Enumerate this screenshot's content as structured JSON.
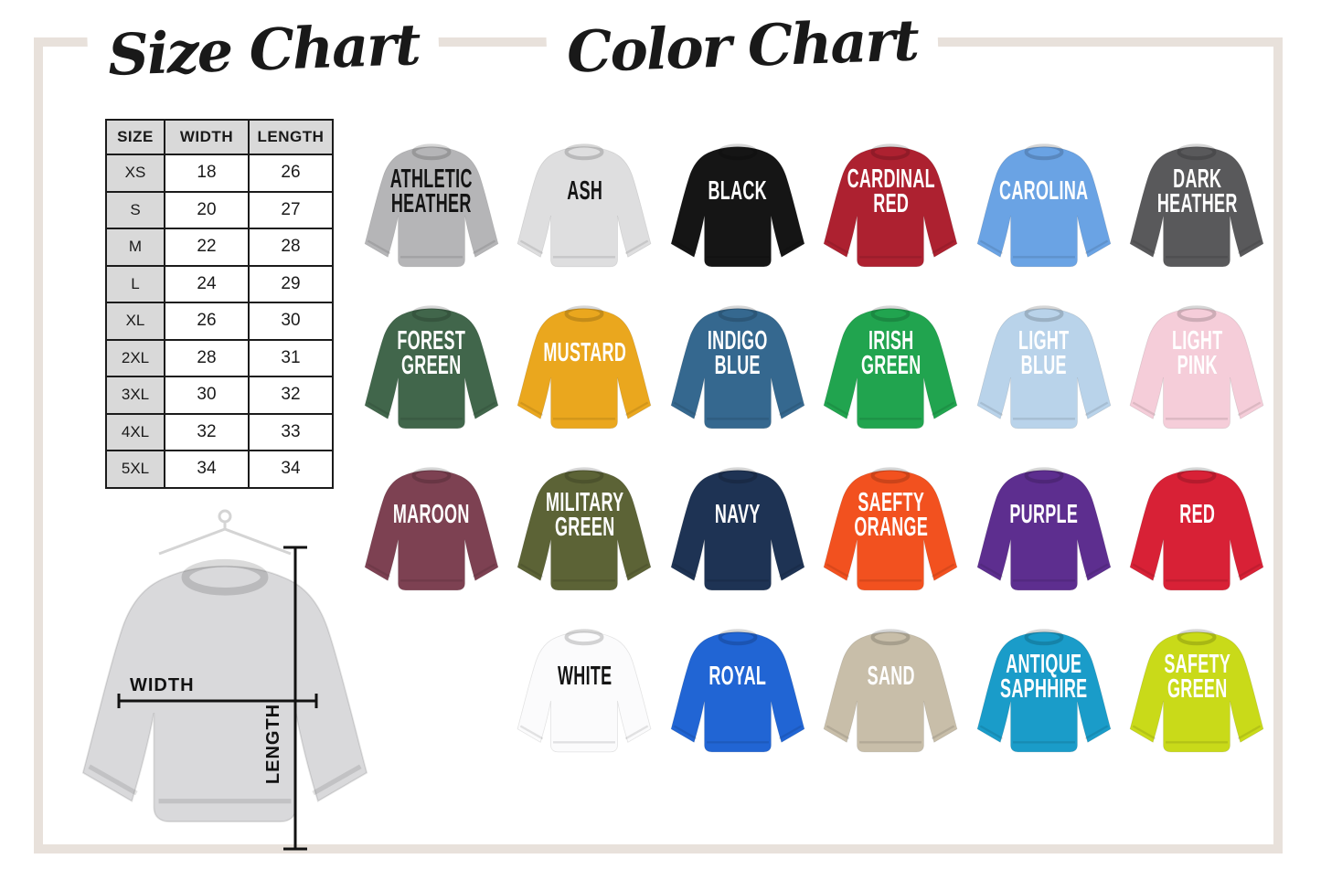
{
  "titles": {
    "size_chart": "Size Chart",
    "color_chart": "Color Chart"
  },
  "theme": {
    "frame_color": "#e8e1db",
    "table_header_bg": "#d9d9d9",
    "table_border": "#1b1b1b",
    "diagram_shirt_color": "#d9d9db",
    "measure_line_color": "#121212"
  },
  "size_table": {
    "headers": [
      "SIZE",
      "WIDTH",
      "LENGTH"
    ],
    "rows": [
      [
        "XS",
        "18",
        "26"
      ],
      [
        "S",
        "20",
        "27"
      ],
      [
        "M",
        "22",
        "28"
      ],
      [
        "L",
        "24",
        "29"
      ],
      [
        "XL",
        "26",
        "30"
      ],
      [
        "2XL",
        "28",
        "31"
      ],
      [
        "3XL",
        "30",
        "32"
      ],
      [
        "4XL",
        "32",
        "33"
      ],
      [
        "5XL",
        "34",
        "34"
      ]
    ]
  },
  "diagram": {
    "width_label": "WIDTH",
    "length_label": "LENGTH"
  },
  "color_chart": {
    "colors": [
      {
        "name": "ATHLETIC HEATHER",
        "hex": "#b5b5b7",
        "text": "#141414"
      },
      {
        "name": "ASH",
        "hex": "#dededf",
        "text": "#141414"
      },
      {
        "name": "BLACK",
        "hex": "#151515",
        "text": "#ffffff"
      },
      {
        "name": "CARDINAL RED",
        "hex": "#ad2130",
        "text": "#ffffff"
      },
      {
        "name": "CAROLINA",
        "hex": "#6aa3e4",
        "text": "#ffffff"
      },
      {
        "name": "DARK HEATHER",
        "hex": "#59595b",
        "text": "#ffffff"
      },
      {
        "name": "FOREST GREEN",
        "hex": "#41664b",
        "text": "#ffffff"
      },
      {
        "name": "MUSTARD",
        "hex": "#eaa71e",
        "text": "#ffffff"
      },
      {
        "name": "INDIGO BLUE",
        "hex": "#35688f",
        "text": "#ffffff"
      },
      {
        "name": "IRISH GREEN",
        "hex": "#21a44f",
        "text": "#ffffff"
      },
      {
        "name": "LIGHT BLUE",
        "hex": "#b9d3ea",
        "text": "#ffffff"
      },
      {
        "name": "LIGHT PINK",
        "hex": "#f5cdd9",
        "text": "#ffffff"
      },
      {
        "name": "MAROON",
        "hex": "#7d4152",
        "text": "#ffffff"
      },
      {
        "name": "MILITARY GREEN",
        "hex": "#5c6336",
        "text": "#ffffff"
      },
      {
        "name": "NAVY",
        "hex": "#1e3354",
        "text": "#ffffff"
      },
      {
        "name": "SAEFTY ORANGE",
        "hex": "#f2511f",
        "text": "#ffffff"
      },
      {
        "name": "PURPLE",
        "hex": "#5d2e8f",
        "text": "#ffffff"
      },
      {
        "name": "RED",
        "hex": "#d82136",
        "text": "#ffffff"
      },
      {
        "name": "WHITE",
        "hex": "#fbfbfc",
        "text": "#141414"
      },
      {
        "name": "ROYAL",
        "hex": "#2165d4",
        "text": "#ffffff"
      },
      {
        "name": "SAND",
        "hex": "#c8bea9",
        "text": "#ffffff"
      },
      {
        "name": "ANTIQUE SAPHHIRE",
        "hex": "#1a9cc9",
        "text": "#ffffff"
      },
      {
        "name": "SAFETY GREEN",
        "hex": "#c9da19",
        "text": "#ffffff"
      }
    ]
  }
}
